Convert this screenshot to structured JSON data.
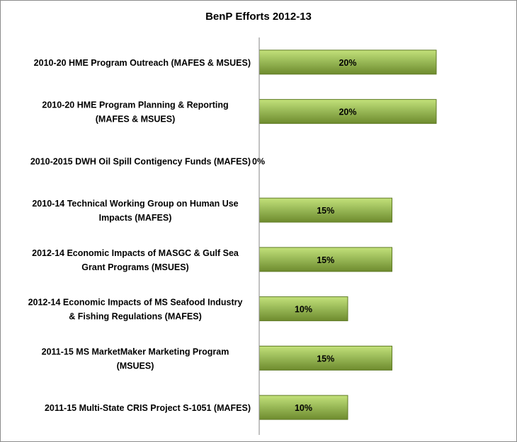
{
  "chart_data": {
    "type": "bar",
    "orientation": "horizontal",
    "title": "BenP Efforts 2012-13",
    "categories": [
      [
        "2010-20 HME Program Outreach (MAFES & MSUES)"
      ],
      [
        "2010-20 HME Program Planning & Reporting",
        "(MAFES & MSUES)"
      ],
      [
        "2010-2015 DWH Oil Spill Contigency Funds (MAFES)"
      ],
      [
        "2010-14 Technical Working Group on Human Use",
        "Impacts (MAFES)"
      ],
      [
        "2012-14 Economic Impacts of MASGC & Gulf Sea",
        "Grant Programs (MSUES)"
      ],
      [
        "2012-14 Economic Impacts of MS Seafood Industry",
        "& Fishing Regulations (MAFES)"
      ],
      [
        "2011-15 MS MarketMaker Marketing Program",
        "(MSUES)"
      ],
      [
        "2011-15 Multi-State CRIS Project S-1051 (MAFES)"
      ]
    ],
    "values": [
      20,
      20,
      0,
      15,
      15,
      10,
      15,
      10
    ],
    "data_labels": [
      "20%",
      "20%",
      "0%",
      "15%",
      "15%",
      "10%",
      "15%",
      "10%"
    ],
    "xlabel": "",
    "ylabel": "",
    "xlim": [
      0,
      26
    ],
    "grid": false,
    "legend": "none",
    "colors": {
      "bar_light": "#c3e17a",
      "bar_mid": "#9bbb59",
      "bar_dark": "#6e8b2e",
      "bar_stroke": "#5f7a25",
      "axis": "#868686"
    }
  }
}
